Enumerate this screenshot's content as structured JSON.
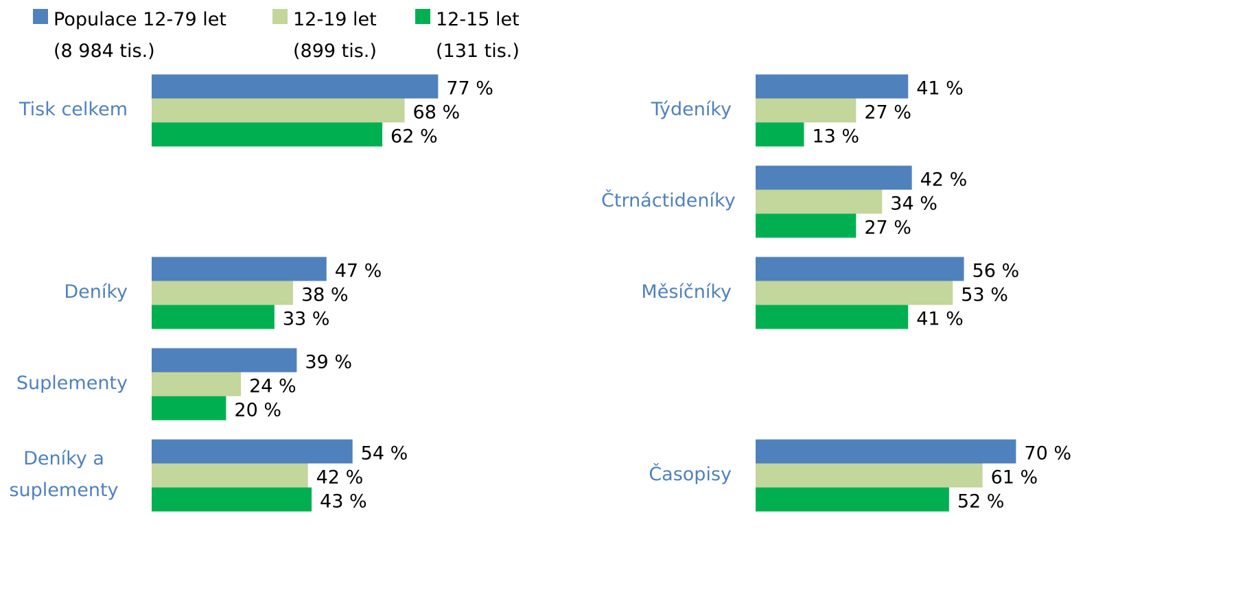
{
  "chart_data": [
    {
      "type": "bar",
      "orientation": "horizontal",
      "categories": [
        "Tisk celkem",
        null,
        "Deníky",
        "Suplementy",
        "Deníky a suplementy"
      ],
      "series": [
        {
          "name": "Populace 12-79 let (8 984 tis.)",
          "color": "#4f81bd",
          "values": [
            77,
            null,
            47,
            39,
            54
          ],
          "value_labels": [
            "77 %",
            null,
            "47 %",
            "39 %",
            "54 %"
          ]
        },
        {
          "name": "12-19 let (899 tis.)",
          "color": "#c3d69b",
          "values": [
            68,
            null,
            38,
            24,
            42
          ],
          "value_labels": [
            "68 %",
            null,
            "38 %",
            "24 %",
            "42 %"
          ]
        },
        {
          "name": "12-15 let (131 tis.)",
          "color": "#00b050",
          "values": [
            62,
            null,
            33,
            20,
            43
          ],
          "value_labels": [
            "62 %",
            null,
            "33 %",
            "20 %",
            "43 %"
          ]
        }
      ]
    },
    {
      "type": "bar",
      "orientation": "horizontal",
      "categories": [
        "Týdeníky",
        "Čtrnáctideníky",
        "Měsíčníky",
        null,
        "Časopisy"
      ],
      "series": [
        {
          "color": "#4f81bd",
          "values": [
            41,
            42,
            56,
            null,
            70
          ],
          "value_labels": [
            "41 %",
            "42 %",
            "56 %",
            null,
            "70 %"
          ]
        },
        {
          "color": "#c3d69b",
          "values": [
            27,
            34,
            53,
            null,
            61
          ],
          "value_labels": [
            "27 %",
            "34 %",
            "53 %",
            null,
            "61 %"
          ]
        },
        {
          "color": "#00b050",
          "values": [
            13,
            27,
            41,
            null,
            52
          ],
          "value_labels": [
            "13 %",
            "27 %",
            "41 %",
            null,
            "52 %"
          ]
        }
      ]
    }
  ]
}
